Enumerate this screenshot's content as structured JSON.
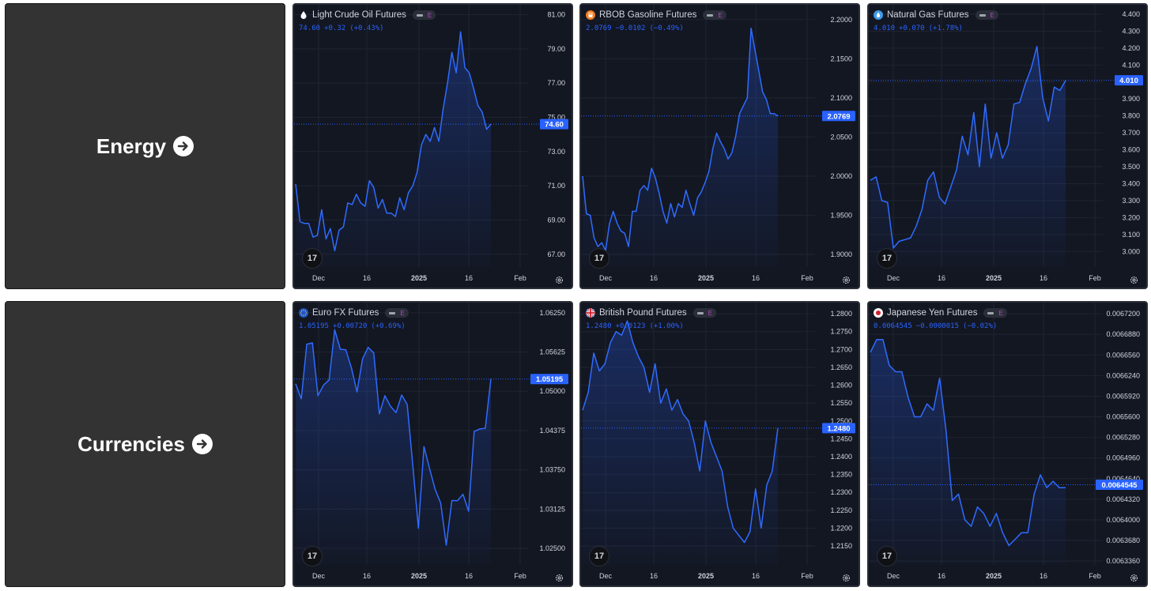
{
  "sections": [
    {
      "label": "Energy",
      "widgets": [
        {
          "title": "Light Crude Oil Futures",
          "price": "74.60",
          "change": "+0.32",
          "change_pct": "(+0.43%)",
          "icon": "oil-drop-icon",
          "x_labels": [
            "Dec",
            "16",
            "2025",
            "16",
            "Feb"
          ],
          "chart_data": {
            "type": "area",
            "y_ticks": [
              "81.00",
              "79.00",
              "77.00",
              "75.00",
              "73.00",
              "71.00",
              "69.00",
              "67.00"
            ],
            "ylim": [
              66.25,
              81.3
            ],
            "price_label": "74.60",
            "last_value": 74.6,
            "values": [
              71.1,
              68.9,
              68.8,
              68.8,
              68.0,
              68.1,
              69.6,
              67.9,
              68.5,
              67.2,
              68.4,
              68.6,
              70.0,
              69.9,
              70.5,
              70.0,
              69.8,
              71.3,
              70.9,
              69.7,
              70.2,
              69.4,
              69.4,
              69.2,
              70.3,
              69.6,
              70.6,
              71.0,
              71.8,
              73.4,
              74.0,
              73.6,
              74.4,
              73.6,
              75.5,
              77.0,
              78.8,
              77.6,
              80.0,
              77.9,
              77.6,
              76.7,
              75.7,
              75.3,
              74.3,
              74.6
            ]
          }
        },
        {
          "title": "RBOB Gasoline Futures",
          "price": "2.0769",
          "change": "−0.0102",
          "change_pct": "(−0.49%)",
          "icon": "fuel-icon",
          "x_labels": [
            "Dec",
            "16",
            "2025",
            "16",
            "Feb"
          ],
          "chart_data": {
            "type": "area",
            "y_ticks": [
              "2.2000",
              "2.1500",
              "2.1000",
              "2.0500",
              "2.0000",
              "1.9500",
              "1.9000"
            ],
            "ylim": [
              1.8839,
              2.2129
            ],
            "price_label": "2.0769",
            "last_value": 2.0769,
            "values": [
              2.0,
              1.952,
              1.95,
              1.921,
              1.91,
              1.915,
              1.905,
              1.939,
              1.955,
              1.94,
              1.93,
              1.927,
              1.91,
              1.955,
              1.955,
              1.982,
              1.988,
              1.982,
              2.01,
              1.998,
              1.978,
              1.955,
              1.94,
              1.965,
              1.948,
              1.965,
              1.96,
              1.982,
              1.965,
              1.95,
              1.972,
              1.98,
              1.992,
              2.006,
              2.035,
              2.055,
              2.044,
              2.035,
              2.022,
              2.03,
              2.051,
              2.08,
              2.09,
              2.1,
              2.189,
              2.162,
              2.135,
              2.108,
              2.098,
              2.08,
              2.08,
              2.077
            ]
          }
        },
        {
          "title": "Natural Gas Futures",
          "price": "4.010",
          "change": "+0.070",
          "change_pct": "(+1.78%)",
          "icon": "flame-icon",
          "x_labels": [
            "Dec",
            "16",
            "2025",
            "16",
            "Feb"
          ],
          "chart_data": {
            "type": "area",
            "y_ticks": [
              "4.400",
              "4.300",
              "4.200",
              "4.100",
              "4.000",
              "3.900",
              "3.800",
              "3.700",
              "3.600",
              "3.500",
              "3.400",
              "3.300",
              "3.200",
              "3.100",
              "3.000"
            ],
            "ylim": [
              2.908,
              4.428
            ],
            "price_label": "4.010",
            "last_value": 4.01,
            "values": [
              3.42,
              3.44,
              3.3,
              3.29,
              3.02,
              3.06,
              3.07,
              3.08,
              3.15,
              3.25,
              3.42,
              3.47,
              3.32,
              3.28,
              3.38,
              3.48,
              3.68,
              3.57,
              3.82,
              3.5,
              3.87,
              3.55,
              3.7,
              3.55,
              3.63,
              3.87,
              3.88,
              3.99,
              4.08,
              4.21,
              3.91,
              3.77,
              3.97,
              3.95,
              4.01
            ]
          }
        }
      ]
    },
    {
      "label": "Currencies",
      "widgets": [
        {
          "title": "Euro FX Futures",
          "price": "1.05195",
          "change": "+0.00720",
          "change_pct": "(+0.69%)",
          "icon": "eu-flag-icon",
          "x_labels": [
            "Dec",
            "16",
            "2025",
            "16",
            "Feb"
          ],
          "chart_data": {
            "type": "area",
            "y_ticks": [
              "1.06250",
              "1.05625",
              "1.05000",
              "1.04375",
              "1.03750",
              "1.03125",
              "1.02500"
            ],
            "ylim": [
              1.02236,
              1.06336
            ],
            "price_label": "1.05195",
            "last_value": 1.05195,
            "values": [
              1.0512,
              1.0488,
              1.0575,
              1.0577,
              1.0493,
              1.051,
              1.0518,
              1.0598,
              1.0567,
              1.0566,
              1.0537,
              1.0499,
              1.0552,
              1.057,
              1.0561,
              1.0464,
              1.0493,
              1.0476,
              1.0466,
              1.0494,
              1.0479,
              1.0382,
              1.0282,
              1.0412,
              1.0377,
              1.0344,
              1.0322,
              1.0255,
              1.0326,
              1.0326,
              1.0336,
              1.0309,
              1.0436,
              1.044,
              1.0441,
              1.052
            ]
          }
        },
        {
          "title": "British Pound Futures",
          "price": "1.2480",
          "change": "+0.0123",
          "change_pct": "(+1.00%)",
          "icon": "uk-flag-icon",
          "x_labels": [
            "Dec",
            "16",
            "2025",
            "16",
            "Feb"
          ],
          "chart_data": {
            "type": "area",
            "y_ticks": [
              "1.2800",
              "1.2750",
              "1.2700",
              "1.2650",
              "1.2600",
              "1.2550",
              "1.2500",
              "1.2450",
              "1.2400",
              "1.2350",
              "1.2300",
              "1.2250",
              "1.2200",
              "1.2150"
            ],
            "ylim": [
              1.2097,
              1.2818
            ],
            "price_label": "1.2480",
            "last_value": 1.248,
            "values": [
              1.253,
              1.258,
              1.269,
              1.264,
              1.266,
              1.272,
              1.275,
              1.274,
              1.278,
              1.272,
              1.268,
              1.265,
              1.258,
              1.266,
              1.255,
              1.259,
              1.253,
              1.256,
              1.252,
              1.25,
              1.244,
              1.236,
              1.25,
              1.244,
              1.24,
              1.236,
              1.226,
              1.22,
              1.218,
              1.216,
              1.219,
              1.231,
              1.22,
              1.232,
              1.236,
              1.248
            ]
          }
        },
        {
          "title": "Japanese Yen Futures",
          "price": "0.0064545",
          "change": "−0.0000015",
          "change_pct": "(−0.02%)",
          "icon": "japan-flag-icon",
          "x_labels": [
            "Dec",
            "16",
            "2025",
            "16",
            "Feb"
          ],
          "chart_data": {
            "type": "area",
            "y_ticks": [
              "0.0067200",
              "0.0066880",
              "0.0066560",
              "0.0066240",
              "0.0065920",
              "0.0065600",
              "0.0065280",
              "0.0064960",
              "0.0064640",
              "0.0064320",
              "0.0064000",
              "0.0063680",
              "0.0063360"
            ],
            "ylim": [
              0.00633,
              0.00673
            ],
            "price_label": "0.0064545",
            "last_value": 0.0064545,
            "values": [
              0.00666,
              0.00668,
              0.00668,
              0.00664,
              0.00663,
              0.00663,
              0.00659,
              0.00656,
              0.00656,
              0.00658,
              0.00657,
              0.00662,
              0.00654,
              0.00643,
              0.00644,
              0.0064,
              0.00639,
              0.00642,
              0.00641,
              0.00639,
              0.00641,
              0.00638,
              0.00636,
              0.00637,
              0.00638,
              0.00638,
              0.00644,
              0.00647,
              0.00645,
              0.00646,
              0.00645,
              0.00645
            ]
          }
        }
      ]
    }
  ],
  "colors": {
    "line": "#2f6bff",
    "bg": "#131722",
    "axis_text": "#d1d4dc",
    "label_bg": "#2962ff"
  }
}
